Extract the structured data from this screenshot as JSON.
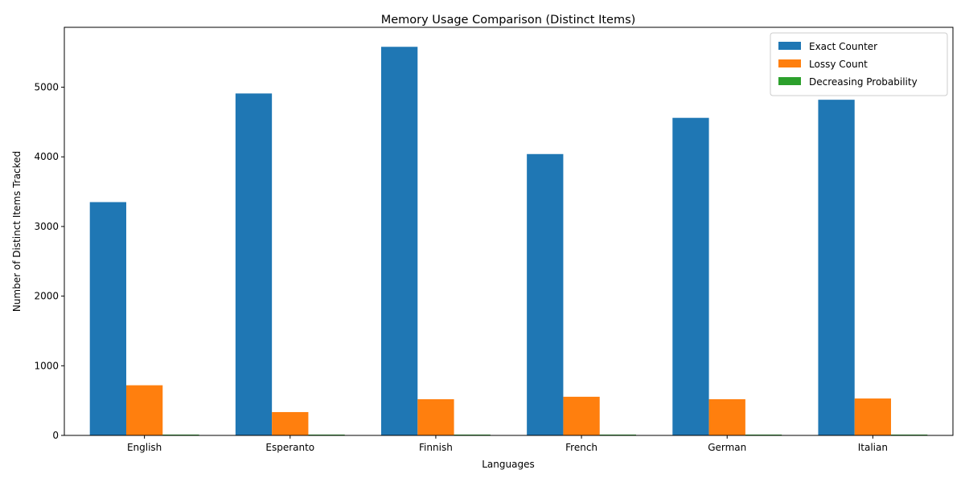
{
  "chart_data": {
    "type": "bar",
    "title": "Memory Usage Comparison (Distinct Items)",
    "xlabel": "Languages",
    "ylabel": "Number of Distinct Items Tracked",
    "categories": [
      "English",
      "Esperanto",
      "Finnish",
      "French",
      "German",
      "Italian"
    ],
    "series": [
      {
        "name": "Exact Counter",
        "color": "#1f77b4",
        "values": [
          3350,
          4910,
          5580,
          4040,
          4560,
          4820
        ]
      },
      {
        "name": "Lossy Count",
        "color": "#ff7f0e",
        "values": [
          720,
          335,
          520,
          555,
          520,
          530
        ]
      },
      {
        "name": "Decreasing Probability",
        "color": "#2ca02c",
        "values": [
          12,
          12,
          12,
          12,
          12,
          12
        ]
      }
    ],
    "ylim": [
      0,
      5860
    ],
    "yticks": [
      0,
      1000,
      2000,
      3000,
      4000,
      5000
    ],
    "grid": false,
    "legend_position": "top-right"
  }
}
